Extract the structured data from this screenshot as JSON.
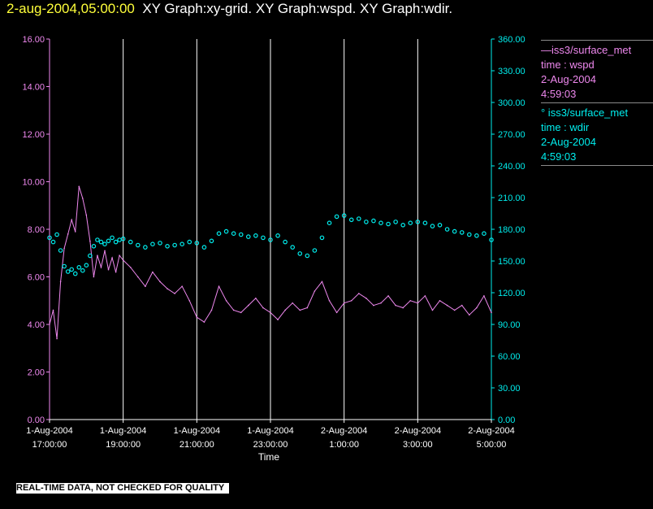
{
  "header": {
    "timestamp": "2-aug-2004,05:00:00",
    "graph_titles": "XY Graph:xy-grid.  XY Graph:wspd.  XY Graph:wdir."
  },
  "legend": [
    {
      "line1": "—iss3/surface_met",
      "line2": "time : wspd",
      "line3": "2-Aug-2004",
      "line4": "4:59:03",
      "color": "#ee88ee"
    },
    {
      "line1": "° iss3/surface_met",
      "line2": "time : wdir",
      "line3": "2-Aug-2004",
      "line4": "4:59:03",
      "color": "#00eeee"
    }
  ],
  "disclaimer": "REAL-TIME DATA, NOT CHECKED FOR QUALITY",
  "chart_data": {
    "type": "line",
    "xlabel": "Time",
    "x_ticks": [
      [
        "1-Aug-2004",
        "17:00:00"
      ],
      [
        "1-Aug-2004",
        "19:00:00"
      ],
      [
        "1-Aug-2004",
        "21:00:00"
      ],
      [
        "1-Aug-2004",
        "23:00:00"
      ],
      [
        "2-Aug-2004",
        "1:00:00"
      ],
      [
        "2-Aug-2004",
        "3:00:00"
      ],
      [
        "2-Aug-2004",
        "5:00:00"
      ]
    ],
    "x_hours": [
      17,
      19,
      21,
      23,
      25,
      27,
      29
    ],
    "xlim_hours": [
      17,
      29
    ],
    "y_left": {
      "lim": [
        0,
        16
      ],
      "ticks": [
        "0.00",
        "2.00",
        "4.00",
        "6.00",
        "8.00",
        "10.00",
        "12.00",
        "14.00",
        "16.00"
      ],
      "color": "#ee88ee"
    },
    "y_right": {
      "lim": [
        0,
        360
      ],
      "ticks": [
        "0.00",
        "30.00",
        "60.00",
        "90.00",
        "120.00",
        "150.00",
        "180.00",
        "210.00",
        "240.00",
        "270.00",
        "300.00",
        "330.00",
        "360.00"
      ],
      "color": "#00eeee"
    },
    "grid": "vertical",
    "series": [
      {
        "name": "iss3/surface_met time : wspd",
        "axis": "left",
        "style": "line",
        "color": "#ee88ee",
        "x": [
          17.0,
          17.1,
          17.2,
          17.3,
          17.4,
          17.5,
          17.6,
          17.7,
          17.8,
          17.9,
          18.0,
          18.1,
          18.2,
          18.3,
          18.4,
          18.5,
          18.6,
          18.7,
          18.8,
          18.9,
          19.0,
          19.2,
          19.4,
          19.6,
          19.8,
          20.0,
          20.2,
          20.4,
          20.6,
          20.8,
          21.0,
          21.2,
          21.4,
          21.6,
          21.8,
          22.0,
          22.2,
          22.4,
          22.6,
          22.8,
          23.0,
          23.2,
          23.4,
          23.6,
          23.8,
          24.0,
          24.2,
          24.4,
          24.6,
          24.8,
          25.0,
          25.2,
          25.4,
          25.6,
          25.8,
          26.0,
          26.2,
          26.4,
          26.6,
          26.8,
          27.0,
          27.2,
          27.4,
          27.6,
          27.8,
          28.0,
          28.2,
          28.4,
          28.6,
          28.8,
          29.0
        ],
        "y": [
          4.0,
          4.6,
          3.4,
          5.8,
          7.2,
          7.8,
          8.4,
          7.9,
          9.8,
          9.3,
          8.6,
          7.5,
          6.0,
          6.9,
          6.4,
          7.1,
          6.3,
          6.8,
          6.2,
          6.9,
          6.7,
          6.4,
          6.0,
          5.6,
          6.2,
          5.8,
          5.5,
          5.3,
          5.6,
          5.0,
          4.3,
          4.1,
          4.6,
          5.6,
          5.0,
          4.6,
          4.5,
          4.8,
          5.1,
          4.7,
          4.5,
          4.2,
          4.6,
          4.9,
          4.6,
          4.7,
          5.4,
          5.8,
          5.0,
          4.5,
          4.9,
          5.0,
          5.3,
          5.1,
          4.8,
          4.9,
          5.2,
          4.8,
          4.7,
          5.0,
          4.9,
          5.2,
          4.6,
          5.0,
          4.8,
          4.6,
          4.8,
          4.4,
          4.7,
          5.2,
          4.5
        ]
      },
      {
        "name": "iss3/surface_met time : wdir",
        "axis": "right",
        "style": "circles",
        "color": "#00eeee",
        "x": [
          17.0,
          17.1,
          17.2,
          17.3,
          17.4,
          17.5,
          17.6,
          17.7,
          17.8,
          17.9,
          18.0,
          18.1,
          18.2,
          18.3,
          18.4,
          18.5,
          18.6,
          18.7,
          18.8,
          18.9,
          19.0,
          19.2,
          19.4,
          19.6,
          19.8,
          20.0,
          20.2,
          20.4,
          20.6,
          20.8,
          21.0,
          21.2,
          21.4,
          21.6,
          21.8,
          22.0,
          22.2,
          22.4,
          22.6,
          22.8,
          23.0,
          23.2,
          23.4,
          23.6,
          23.8,
          24.0,
          24.2,
          24.4,
          24.6,
          24.8,
          25.0,
          25.2,
          25.4,
          25.6,
          25.8,
          26.0,
          26.2,
          26.4,
          26.6,
          26.8,
          27.0,
          27.2,
          27.4,
          27.6,
          27.8,
          28.0,
          28.2,
          28.4,
          28.6,
          28.8,
          29.0
        ],
        "y": [
          172,
          168,
          175,
          160,
          145,
          140,
          142,
          138,
          144,
          141,
          146,
          155,
          164,
          170,
          168,
          166,
          169,
          172,
          168,
          170,
          171,
          168,
          165,
          163,
          166,
          167,
          164,
          165,
          166,
          168,
          167,
          163,
          169,
          176,
          178,
          176,
          175,
          173,
          174,
          172,
          170,
          174,
          168,
          163,
          157,
          155,
          160,
          172,
          186,
          192,
          193,
          189,
          190,
          187,
          188,
          186,
          185,
          187,
          184,
          186,
          187,
          186,
          183,
          184,
          180,
          178,
          177,
          175,
          174,
          176,
          170
        ]
      }
    ]
  }
}
